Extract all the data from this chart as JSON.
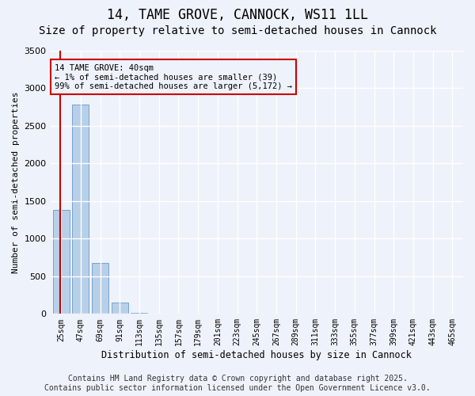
{
  "title": "14, TAME GROVE, CANNOCK, WS11 1LL",
  "subtitle": "Size of property relative to semi-detached houses in Cannock",
  "xlabel": "Distribution of semi-detached houses by size in Cannock",
  "ylabel": "Number of semi-detached properties",
  "bar_color": "#b8cfe8",
  "bar_edge_color": "#6699cc",
  "background_color": "#eef2fa",
  "grid_color": "#ffffff",
  "bins": [
    "25sqm",
    "47sqm",
    "69sqm",
    "91sqm",
    "113sqm",
    "135sqm",
    "157sqm",
    "179sqm",
    "201sqm",
    "223sqm",
    "245sqm",
    "267sqm",
    "289sqm",
    "311sqm",
    "333sqm",
    "355sqm",
    "377sqm",
    "399sqm",
    "421sqm",
    "443sqm",
    "465sqm"
  ],
  "values": [
    1380,
    2780,
    680,
    150,
    15,
    8,
    4,
    2,
    1,
    1,
    0,
    0,
    0,
    0,
    0,
    0,
    0,
    0,
    0,
    0,
    0
  ],
  "ylim": [
    0,
    3500
  ],
  "annotation_title": "14 TAME GROVE: 40sqm",
  "annotation_line1": "← 1% of semi-detached houses are smaller (39)",
  "annotation_line2": "99% of semi-detached houses are larger (5,172) →",
  "annotation_color": "#cc0000",
  "vline_color": "#cc0000",
  "footer_line1": "Contains HM Land Registry data © Crown copyright and database right 2025.",
  "footer_line2": "Contains public sector information licensed under the Open Government Licence v3.0.",
  "title_fontsize": 12,
  "subtitle_fontsize": 10,
  "footer_fontsize": 7,
  "yticks": [
    0,
    500,
    1000,
    1500,
    2000,
    2500,
    3000,
    3500
  ]
}
